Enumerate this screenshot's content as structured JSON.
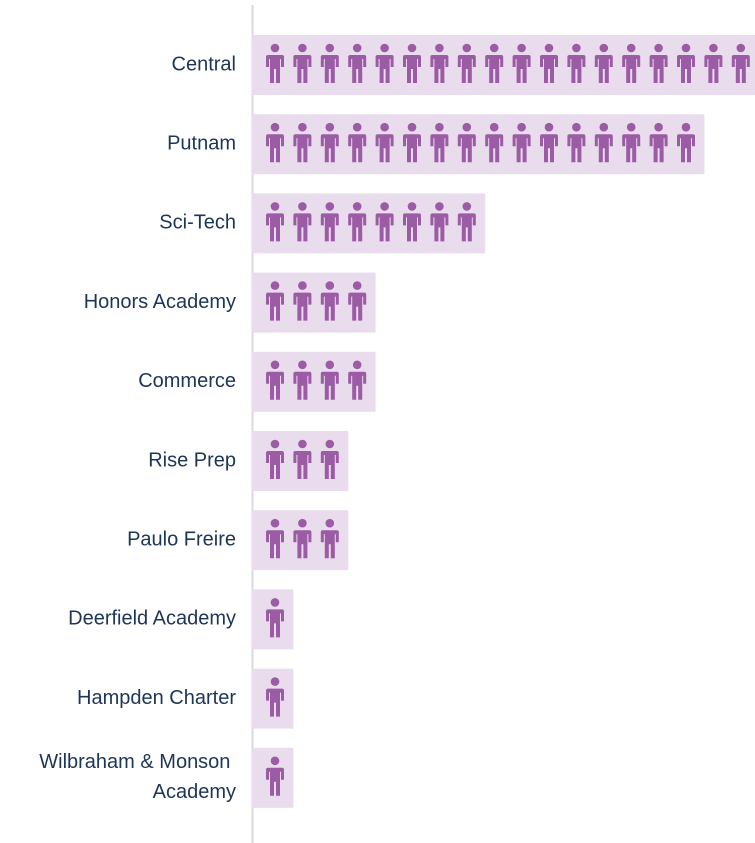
{
  "chart_data": {
    "type": "pictograph",
    "categories": [
      "Central",
      "Putnam",
      "Sci-Tech",
      "Honors Academy",
      "Commerce",
      "Rise Prep",
      "Paulo Freire",
      "Deerfield Academy",
      "Hampden Charter",
      "Wilbraham & Monson Academy"
    ],
    "values": [
      18,
      16,
      8,
      4,
      4,
      3,
      3,
      1,
      1,
      1
    ],
    "color": "#9b5ba5",
    "background_color": "#e9dced"
  }
}
